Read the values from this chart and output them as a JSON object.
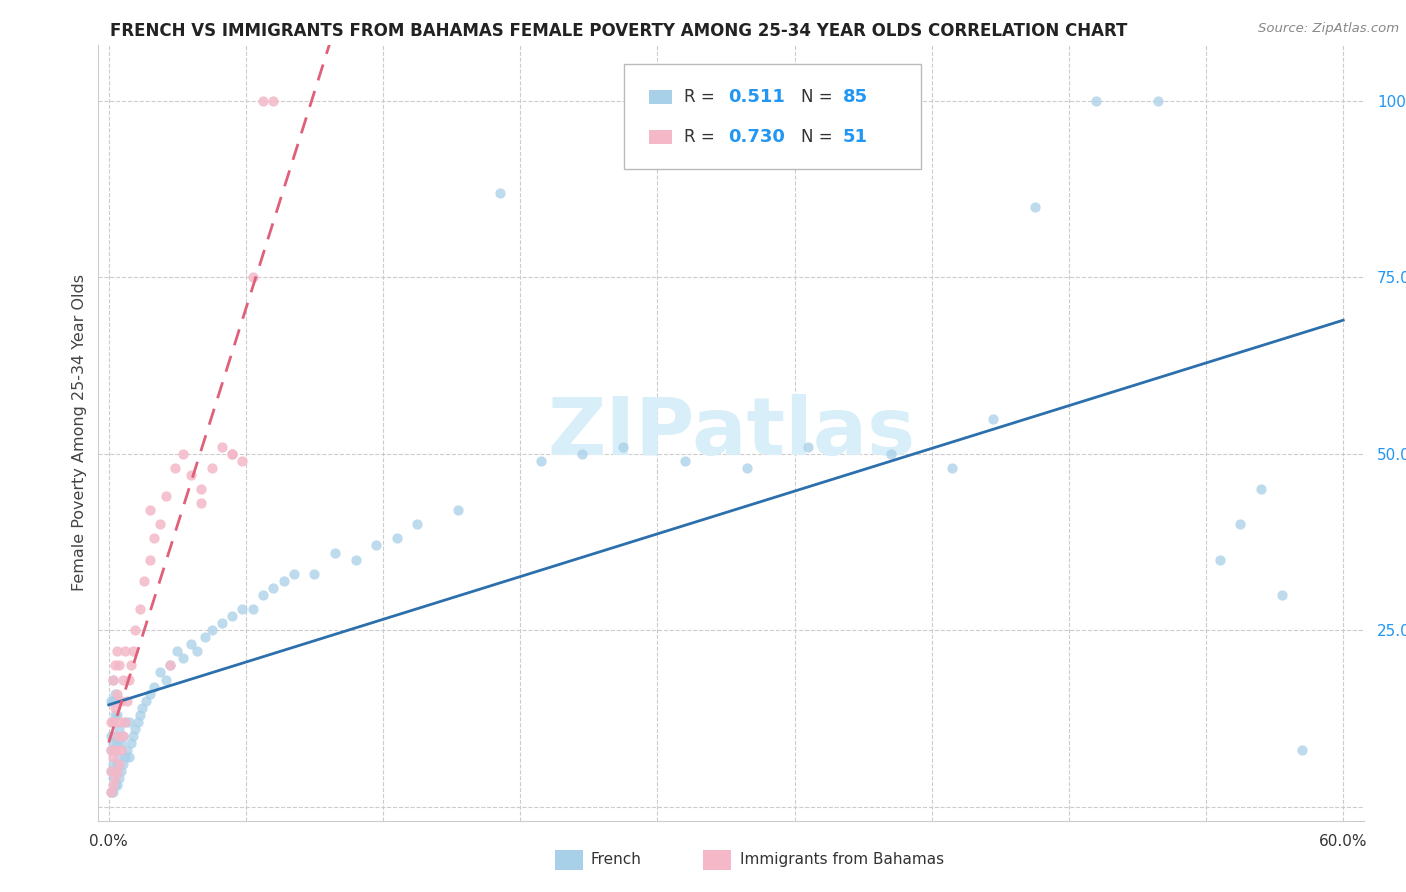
{
  "title": "FRENCH VS IMMIGRANTS FROM BAHAMAS FEMALE POVERTY AMONG 25-34 YEAR OLDS CORRELATION CHART",
  "source": "Source: ZipAtlas.com",
  "ylabel": "Female Poverty Among 25-34 Year Olds",
  "ytick_values": [
    0.0,
    0.25,
    0.5,
    0.75,
    1.0
  ],
  "ytick_labels": [
    "",
    "25.0%",
    "50.0%",
    "75.0%",
    "100.0%"
  ],
  "xmin": 0.0,
  "xmax": 0.6,
  "ymin": -0.02,
  "ymax": 1.08,
  "blue_scatter_color": "#a8d0e8",
  "blue_line_color": "#2c6fad",
  "pink_scatter_color": "#f4b8c8",
  "pink_line_color": "#e0607a",
  "watermark_text": "ZIPatlas",
  "watermark_color": "#d8eef8",
  "legend_r1": "0.511",
  "legend_n1": "85",
  "legend_r2": "0.730",
  "legend_n2": "51",
  "french_x": [
    0.001,
    0.001,
    0.001,
    0.001,
    0.001,
    0.002,
    0.002,
    0.002,
    0.002,
    0.002,
    0.002,
    0.002,
    0.003,
    0.003,
    0.003,
    0.003,
    0.003,
    0.003,
    0.004,
    0.004,
    0.004,
    0.004,
    0.005,
    0.005,
    0.005,
    0.006,
    0.006,
    0.007,
    0.007,
    0.008,
    0.008,
    0.009,
    0.01,
    0.01,
    0.011,
    0.012,
    0.013,
    0.014,
    0.015,
    0.016,
    0.018,
    0.02,
    0.022,
    0.025,
    0.028,
    0.03,
    0.033,
    0.036,
    0.04,
    0.043,
    0.047,
    0.05,
    0.055,
    0.06,
    0.065,
    0.07,
    0.075,
    0.08,
    0.085,
    0.09,
    0.1,
    0.11,
    0.12,
    0.13,
    0.14,
    0.15,
    0.17,
    0.19,
    0.21,
    0.23,
    0.25,
    0.28,
    0.31,
    0.34,
    0.38,
    0.41,
    0.43,
    0.45,
    0.48,
    0.51,
    0.54,
    0.55,
    0.56,
    0.57,
    0.58
  ],
  "french_y": [
    0.02,
    0.05,
    0.08,
    0.1,
    0.15,
    0.02,
    0.04,
    0.06,
    0.09,
    0.12,
    0.15,
    0.18,
    0.03,
    0.05,
    0.08,
    0.1,
    0.13,
    0.16,
    0.03,
    0.06,
    0.09,
    0.13,
    0.04,
    0.07,
    0.11,
    0.05,
    0.09,
    0.06,
    0.1,
    0.07,
    0.12,
    0.08,
    0.07,
    0.12,
    0.09,
    0.1,
    0.11,
    0.12,
    0.13,
    0.14,
    0.15,
    0.16,
    0.17,
    0.19,
    0.18,
    0.2,
    0.22,
    0.21,
    0.23,
    0.22,
    0.24,
    0.25,
    0.26,
    0.27,
    0.28,
    0.28,
    0.3,
    0.31,
    0.32,
    0.33,
    0.33,
    0.36,
    0.35,
    0.37,
    0.38,
    0.4,
    0.42,
    0.87,
    0.49,
    0.5,
    0.51,
    0.49,
    0.48,
    0.51,
    0.5,
    0.48,
    0.55,
    0.85,
    1.0,
    1.0,
    0.35,
    0.4,
    0.45,
    0.3,
    0.08
  ],
  "bahamas_x": [
    0.001,
    0.001,
    0.001,
    0.001,
    0.002,
    0.002,
    0.002,
    0.002,
    0.003,
    0.003,
    0.003,
    0.003,
    0.004,
    0.004,
    0.004,
    0.004,
    0.005,
    0.005,
    0.005,
    0.006,
    0.006,
    0.007,
    0.007,
    0.008,
    0.008,
    0.009,
    0.01,
    0.011,
    0.012,
    0.013,
    0.015,
    0.017,
    0.02,
    0.022,
    0.025,
    0.028,
    0.032,
    0.036,
    0.04,
    0.045,
    0.05,
    0.055,
    0.06,
    0.065,
    0.07,
    0.075,
    0.08,
    0.06,
    0.045,
    0.03,
    0.02
  ],
  "bahamas_y": [
    0.02,
    0.05,
    0.08,
    0.12,
    0.03,
    0.07,
    0.12,
    0.18,
    0.04,
    0.08,
    0.14,
    0.2,
    0.05,
    0.1,
    0.16,
    0.22,
    0.06,
    0.12,
    0.2,
    0.08,
    0.15,
    0.1,
    0.18,
    0.12,
    0.22,
    0.15,
    0.18,
    0.2,
    0.22,
    0.25,
    0.28,
    0.32,
    0.35,
    0.38,
    0.4,
    0.44,
    0.48,
    0.5,
    0.47,
    0.43,
    0.48,
    0.51,
    0.5,
    0.49,
    0.75,
    1.0,
    1.0,
    0.5,
    0.45,
    0.2,
    0.42
  ]
}
